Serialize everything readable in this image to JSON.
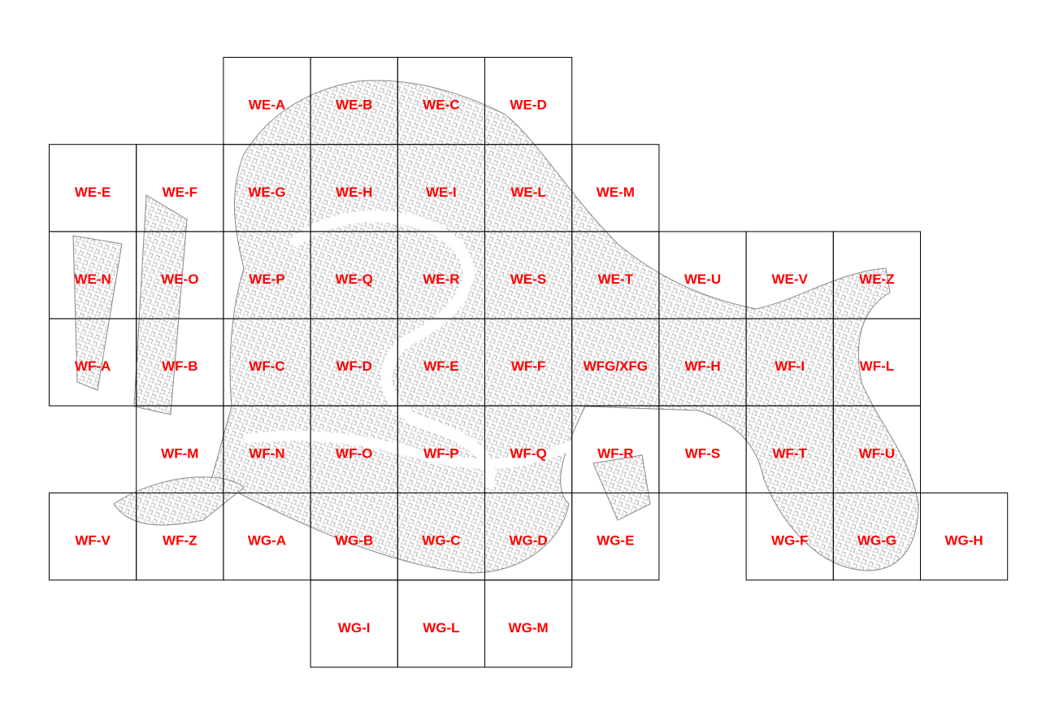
{
  "grid": {
    "rows": [
      [
        null,
        null,
        "WE-A",
        "WE-B",
        "WE-C",
        "WE-D",
        null,
        null,
        null,
        null,
        null
      ],
      [
        "WE-E",
        "WE-F",
        "WE-G",
        "WE-H",
        "WE-I",
        "WE-L",
        "WE-M",
        null,
        null,
        null,
        null
      ],
      [
        "WE-N",
        "WE-O",
        "WE-P",
        "WE-Q",
        "WE-R",
        "WE-S",
        "WE-T",
        "WE-U",
        "WE-V",
        "WE-Z",
        null
      ],
      [
        "WF-A",
        "WF-B",
        "WF-C",
        "WF-D",
        "WF-E",
        "WF-F",
        "WFG/XFG",
        "WF-H",
        "WF-I",
        "WF-L",
        null
      ],
      [
        null,
        "WF-M",
        "WF-N",
        "WF-O",
        "WF-P",
        "WF-Q",
        "WF-R",
        "WF-S",
        "WF-T",
        "WF-U",
        null
      ],
      [
        "WF-V",
        "WF-Z",
        "WG-A",
        "WG-B",
        "WG-C",
        "WG-D",
        "WG-E",
        null,
        "WG-F",
        "WG-G",
        "WG-H"
      ],
      [
        null,
        null,
        null,
        "WG-I",
        "WG-L",
        "WG-M",
        null,
        null,
        null,
        null,
        null
      ]
    ]
  }
}
